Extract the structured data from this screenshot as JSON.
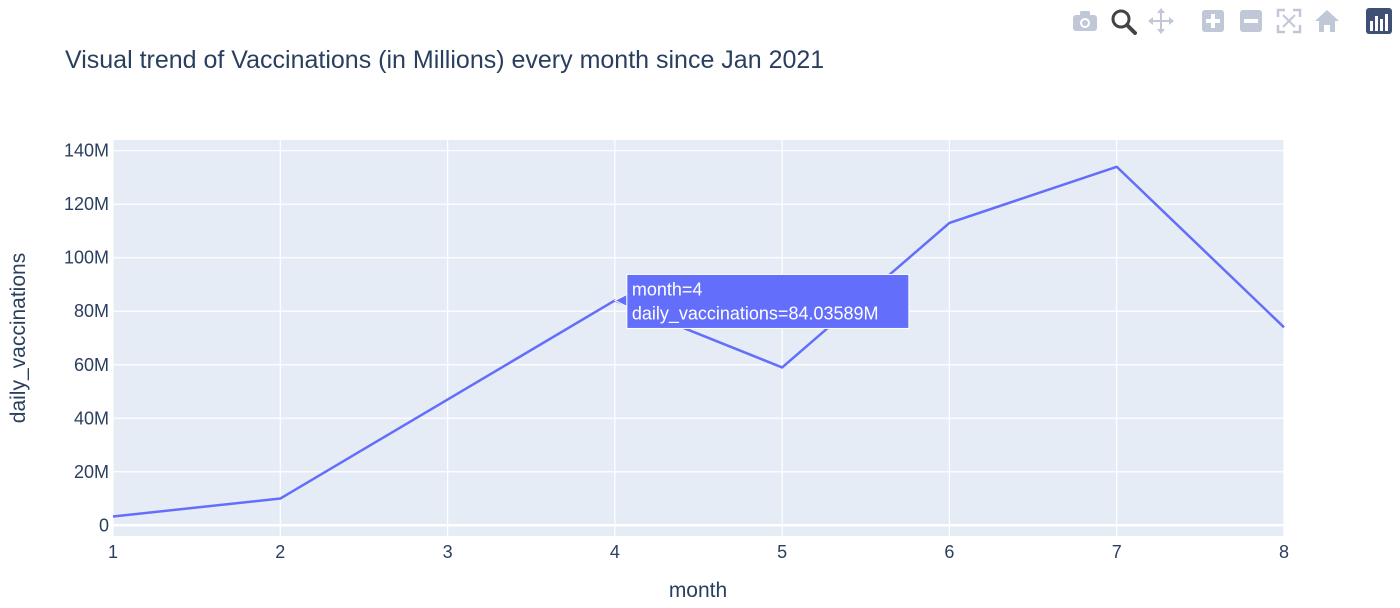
{
  "modebar": {
    "buttons": [
      {
        "name": "camera-icon",
        "color": "#c0c8d8"
      },
      {
        "name": "zoom-icon",
        "color": "#444444",
        "active": true
      },
      {
        "name": "pan-icon",
        "color": "#c0c8d8"
      },
      {
        "name": "zoom-in-icon",
        "color": "#c0c8d8"
      },
      {
        "name": "zoom-out-icon",
        "color": "#c0c8d8"
      },
      {
        "name": "autoscale-icon",
        "color": "#c0c8d8"
      },
      {
        "name": "reset-axes-icon",
        "color": "#c0c8d8"
      },
      {
        "name": "plotly-logo-icon",
        "color": "#3f4f75"
      }
    ]
  },
  "chart_data": {
    "type": "line",
    "title": "Visual trend of Vaccinations (in Millions) every month since Jan 2021",
    "xlabel": "month",
    "ylabel": "daily_vaccinations",
    "x": [
      1,
      2,
      3,
      4,
      5,
      6,
      7,
      8
    ],
    "x_ticks": [
      "1",
      "2",
      "3",
      "4",
      "5",
      "6",
      "7",
      "8"
    ],
    "xlim": [
      1,
      8
    ],
    "y_ticks": [
      0,
      20,
      40,
      60,
      80,
      100,
      120,
      140
    ],
    "y_tick_labels": [
      "0",
      "20M",
      "40M",
      "60M",
      "80M",
      "100M",
      "120M",
      "140M"
    ],
    "ylim": [
      -4,
      144
    ],
    "series": [
      {
        "values": [
          3.3,
          10.0,
          47.0,
          84.03589,
          59.0,
          113.0,
          134.0,
          74.0
        ],
        "color": "#636efa"
      }
    ],
    "grid": true,
    "plot_background": "#e5ecf6",
    "tooltip": {
      "point_index": 3,
      "lines": [
        "month=4",
        "daily_vaccinations=84.03589M"
      ],
      "background": "#636efa"
    }
  }
}
